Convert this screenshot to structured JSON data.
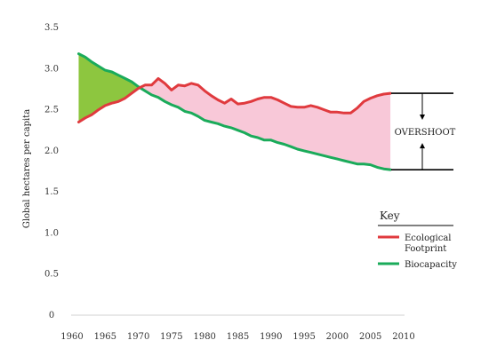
{
  "chart_data": {
    "type": "line",
    "ylabel": "Global hectares per capita",
    "xlim": [
      1960,
      2010
    ],
    "ylim": [
      0,
      3.5
    ],
    "x_ticks": [
      1960,
      1965,
      1970,
      1975,
      1980,
      1985,
      1990,
      1995,
      2000,
      2005,
      2010
    ],
    "x_tick_labels": [
      "1960",
      "1965",
      "1970",
      "1975",
      "1980",
      "1985",
      "1990",
      "1995",
      "2000",
      "2005",
      "2010"
    ],
    "y_ticks": [
      0,
      0.5,
      1.0,
      1.5,
      2.0,
      2.5,
      3.0,
      3.5
    ],
    "y_tick_labels": [
      "0",
      "0.5",
      "1.0",
      "1.5",
      "2.0",
      "2.5",
      "3.0",
      "3.5"
    ],
    "grid": false,
    "legend": {
      "title": "Key",
      "placement": "bottom-right",
      "items": [
        {
          "label_lines": [
            "Ecological",
            "Footprint"
          ],
          "series": 0
        },
        {
          "label_lines": [
            "Biocapacity"
          ],
          "series": 1
        }
      ]
    },
    "annotation": {
      "text": "OVERSHOOT",
      "upper_value": 2.7,
      "lower_value": 1.77
    },
    "fills": {
      "reserve_color": "#8dc63f",
      "overshoot_color": "#f8c8d8"
    },
    "series": [
      {
        "name": "Ecological Footprint",
        "color": "#e03a3e",
        "x": [
          1961,
          1962,
          1963,
          1964,
          1965,
          1966,
          1967,
          1968,
          1969,
          1970,
          1971,
          1972,
          1973,
          1974,
          1975,
          1976,
          1977,
          1978,
          1979,
          1980,
          1981,
          1982,
          1983,
          1984,
          1985,
          1986,
          1987,
          1988,
          1989,
          1990,
          1991,
          1992,
          1993,
          1994,
          1995,
          1996,
          1997,
          1998,
          1999,
          2000,
          2001,
          2002,
          2003,
          2004,
          2005,
          2006,
          2007,
          2008
        ],
        "y": [
          2.35,
          2.4,
          2.44,
          2.5,
          2.55,
          2.58,
          2.6,
          2.64,
          2.7,
          2.76,
          2.8,
          2.8,
          2.88,
          2.82,
          2.74,
          2.8,
          2.79,
          2.82,
          2.8,
          2.73,
          2.67,
          2.62,
          2.58,
          2.63,
          2.57,
          2.58,
          2.6,
          2.63,
          2.65,
          2.65,
          2.62,
          2.58,
          2.54,
          2.53,
          2.53,
          2.55,
          2.53,
          2.5,
          2.47,
          2.47,
          2.46,
          2.46,
          2.52,
          2.6,
          2.64,
          2.67,
          2.69,
          2.7
        ]
      },
      {
        "name": "Biocapacity",
        "color": "#1aab5a",
        "x": [
          1961,
          1962,
          1963,
          1964,
          1965,
          1966,
          1967,
          1968,
          1969,
          1970,
          1971,
          1972,
          1973,
          1974,
          1975,
          1976,
          1977,
          1978,
          1979,
          1980,
          1981,
          1982,
          1983,
          1984,
          1985,
          1986,
          1987,
          1988,
          1989,
          1990,
          1991,
          1992,
          1993,
          1994,
          1995,
          1996,
          1997,
          1998,
          1999,
          2000,
          2001,
          2002,
          2003,
          2004,
          2005,
          2006,
          2007,
          2008
        ],
        "y": [
          3.18,
          3.14,
          3.08,
          3.03,
          2.98,
          2.96,
          2.92,
          2.88,
          2.84,
          2.78,
          2.73,
          2.68,
          2.65,
          2.6,
          2.56,
          2.53,
          2.48,
          2.46,
          2.42,
          2.37,
          2.35,
          2.33,
          2.3,
          2.28,
          2.25,
          2.22,
          2.18,
          2.16,
          2.13,
          2.13,
          2.1,
          2.08,
          2.05,
          2.02,
          2.0,
          1.98,
          1.96,
          1.94,
          1.92,
          1.9,
          1.88,
          1.86,
          1.84,
          1.84,
          1.83,
          1.8,
          1.78,
          1.77
        ]
      }
    ]
  }
}
